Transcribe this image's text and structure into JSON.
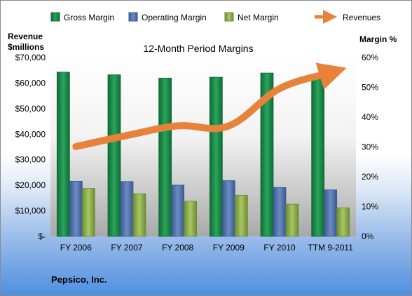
{
  "chart_data": {
    "type": "bar",
    "title": "12-Month Period Margins",
    "ylabel_left": [
      "Revenue",
      "$millions"
    ],
    "ylabel_right": "Margin %",
    "categories": [
      "FY 2006",
      "FY 2007",
      "FY 2008",
      "FY 2009",
      "FY 2010",
      "TTM 9-2011"
    ],
    "y_left": {
      "ticks": [
        "$-",
        "$10,000",
        "$20,000",
        "$30,000",
        "$40,000",
        "$50,000",
        "$60,000",
        "$70,000"
      ],
      "lim": [
        0,
        70000
      ]
    },
    "y_right": {
      "ticks": [
        "0%",
        "10%",
        "20%",
        "30%",
        "40%",
        "50%",
        "60%"
      ],
      "lim": [
        0,
        60
      ]
    },
    "series": [
      {
        "name": "Gross Margin",
        "kind": "bar",
        "color": "#1e8a4a",
        "values": [
          55.1,
          54.2,
          53.1,
          53.4,
          54.8,
          53.0
        ]
      },
      {
        "name": "Operating Margin",
        "kind": "bar",
        "color": "#4f6fa8",
        "values": [
          18.5,
          18.4,
          17.2,
          18.7,
          16.4,
          15.6
        ]
      },
      {
        "name": "Net Margin",
        "kind": "bar",
        "color": "#8fb04c",
        "values": [
          16.1,
          14.3,
          11.8,
          13.8,
          10.8,
          9.6
        ]
      },
      {
        "name": "Revenues",
        "kind": "line",
        "color": "#e8823a",
        "values": [
          35137,
          39474,
          43251,
          43232,
          57838,
          64000
        ]
      }
    ],
    "legend_position": "top",
    "grid": false
  },
  "footer": "Pepsico, Inc."
}
